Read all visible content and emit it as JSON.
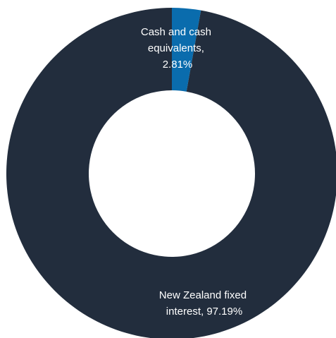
{
  "chart_data": {
    "type": "pie",
    "slices": [
      {
        "label": "Cash and cash equivalents",
        "percent": "2.81%",
        "value": 2.81,
        "color": "#0a6cad",
        "label_lines": [
          "Cash and cash",
          "equivalents,",
          "2.81%"
        ]
      },
      {
        "label": "New Zealand fixed interest",
        "percent": "97.19%",
        "value": 97.19,
        "color": "#222d3d",
        "label_lines": [
          "New Zealand fixed",
          "interest, 97.19%"
        ]
      }
    ],
    "title": "",
    "legend": "none",
    "style": "donut"
  }
}
